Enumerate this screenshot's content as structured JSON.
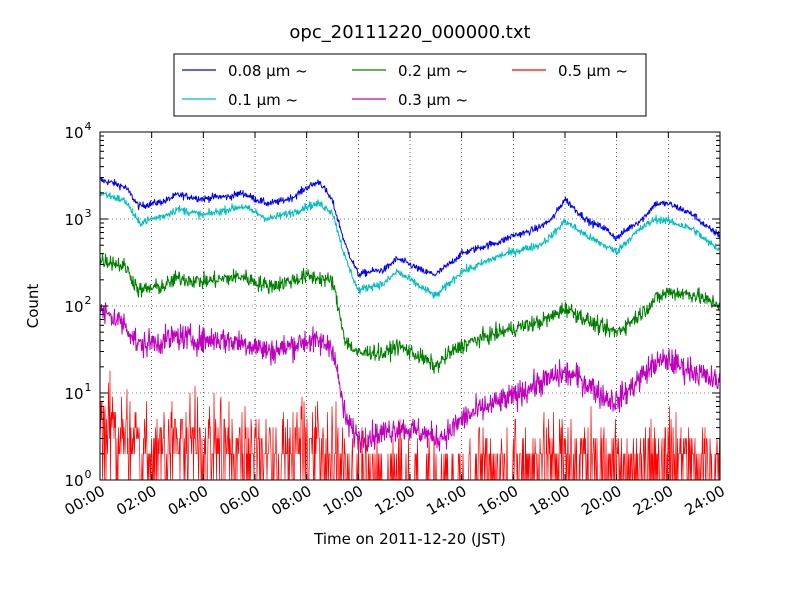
{
  "chart_data": {
    "type": "line",
    "title": "opc_20111220_000000.txt",
    "xlabel": "Time on 2011-12-20 (JST)",
    "ylabel": "Count",
    "y_scale": "log",
    "ylim": [
      1,
      10000
    ],
    "xlim": [
      "00:00",
      "24:00"
    ],
    "grid": true,
    "legend_position": "top-center",
    "x_tick_labels": [
      "00:00",
      "02:00",
      "04:00",
      "06:00",
      "08:00",
      "10:00",
      "12:00",
      "14:00",
      "16:00",
      "18:00",
      "20:00",
      "22:00",
      "24:00"
    ],
    "y_ticks": [
      {
        "base": "10",
        "exp": "0"
      },
      {
        "base": "10",
        "exp": "1"
      },
      {
        "base": "10",
        "exp": "2"
      },
      {
        "base": "10",
        "exp": "3"
      },
      {
        "base": "10",
        "exp": "4"
      }
    ],
    "series": [
      {
        "name": "0.08 μm ~",
        "color": "#0000ff",
        "x": [
          "00:00",
          "00:30",
          "01:00",
          "01:30",
          "02:00",
          "02:30",
          "03:00",
          "03:30",
          "04:00",
          "04:30",
          "05:00",
          "05:30",
          "06:00",
          "06:30",
          "07:00",
          "07:30",
          "08:00",
          "08:30",
          "09:00",
          "09:30",
          "10:00",
          "10:30",
          "11:00",
          "11:30",
          "12:00",
          "12:30",
          "13:00",
          "13:30",
          "14:00",
          "14:30",
          "15:00",
          "15:30",
          "16:00",
          "16:30",
          "17:00",
          "17:30",
          "18:00",
          "18:30",
          "19:00",
          "19:30",
          "20:00",
          "20:30",
          "21:00",
          "21:30",
          "22:00",
          "22:30",
          "23:00",
          "23:30",
          "24:00"
        ],
        "values": [
          2800,
          2600,
          2300,
          1400,
          1500,
          1600,
          1900,
          1800,
          1700,
          1800,
          1800,
          2000,
          1700,
          1500,
          1600,
          1800,
          2300,
          2700,
          1600,
          500,
          230,
          250,
          260,
          350,
          300,
          250,
          230,
          300,
          400,
          450,
          500,
          550,
          650,
          700,
          800,
          1000,
          1700,
          1200,
          900,
          800,
          600,
          800,
          1000,
          1500,
          1500,
          1300,
          1100,
          800,
          650
        ],
        "noise": 0.04
      },
      {
        "name": "0.1 μm ~",
        "color": "#00bfbf",
        "x": [
          "00:00",
          "00:30",
          "01:00",
          "01:30",
          "02:00",
          "02:30",
          "03:00",
          "03:30",
          "04:00",
          "04:30",
          "05:00",
          "05:30",
          "06:00",
          "06:30",
          "07:00",
          "07:30",
          "08:00",
          "08:30",
          "09:00",
          "09:30",
          "10:00",
          "10:30",
          "11:00",
          "11:30",
          "12:00",
          "12:30",
          "13:00",
          "13:30",
          "14:00",
          "14:30",
          "15:00",
          "15:30",
          "16:00",
          "16:30",
          "17:00",
          "17:30",
          "18:00",
          "18:30",
          "19:00",
          "19:30",
          "20:00",
          "20:30",
          "21:00",
          "21:30",
          "22:00",
          "22:30",
          "23:00",
          "23:30",
          "24:00"
        ],
        "values": [
          2000,
          1800,
          1600,
          900,
          1000,
          1100,
          1300,
          1200,
          1100,
          1200,
          1300,
          1400,
          1200,
          1000,
          1100,
          1200,
          1400,
          1500,
          1200,
          350,
          150,
          170,
          180,
          250,
          200,
          160,
          130,
          180,
          250,
          280,
          330,
          380,
          420,
          460,
          500,
          650,
          950,
          750,
          600,
          500,
          420,
          600,
          800,
          1000,
          950,
          850,
          750,
          550,
          450
        ],
        "noise": 0.045
      },
      {
        "name": "0.2 μm ~",
        "color": "#008000",
        "x": [
          "00:00",
          "00:30",
          "01:00",
          "01:30",
          "02:00",
          "02:30",
          "03:00",
          "03:30",
          "04:00",
          "04:30",
          "05:00",
          "05:30",
          "06:00",
          "06:30",
          "07:00",
          "07:30",
          "08:00",
          "08:30",
          "09:00",
          "09:30",
          "10:00",
          "10:30",
          "11:00",
          "11:30",
          "12:00",
          "12:30",
          "13:00",
          "13:30",
          "14:00",
          "14:30",
          "15:00",
          "15:30",
          "16:00",
          "16:30",
          "17:00",
          "17:30",
          "18:00",
          "18:30",
          "19:00",
          "19:30",
          "20:00",
          "20:30",
          "21:00",
          "21:30",
          "22:00",
          "22:30",
          "23:00",
          "23:30",
          "24:00"
        ],
        "values": [
          340,
          320,
          280,
          150,
          160,
          170,
          210,
          200,
          190,
          200,
          210,
          220,
          190,
          170,
          180,
          200,
          220,
          210,
          190,
          40,
          28,
          30,
          28,
          35,
          30,
          25,
          20,
          28,
          35,
          40,
          45,
          50,
          55,
          60,
          65,
          75,
          95,
          80,
          65,
          55,
          50,
          65,
          85,
          120,
          145,
          140,
          135,
          115,
          105
        ],
        "noise": 0.09
      },
      {
        "name": "0.3 μm ~",
        "color": "#bf00bf",
        "x": [
          "00:00",
          "00:30",
          "01:00",
          "01:30",
          "02:00",
          "02:30",
          "03:00",
          "03:30",
          "04:00",
          "04:30",
          "05:00",
          "05:30",
          "06:00",
          "06:30",
          "07:00",
          "07:30",
          "08:00",
          "08:30",
          "09:00",
          "09:30",
          "10:00",
          "10:30",
          "11:00",
          "11:30",
          "12:00",
          "12:30",
          "13:00",
          "13:30",
          "14:00",
          "14:30",
          "15:00",
          "15:30",
          "16:00",
          "16:30",
          "17:00",
          "17:30",
          "18:00",
          "18:30",
          "19:00",
          "19:30",
          "20:00",
          "20:30",
          "21:00",
          "21:30",
          "22:00",
          "22:30",
          "23:00",
          "23:30",
          "24:00"
        ],
        "values": [
          85,
          75,
          60,
          35,
          38,
          40,
          45,
          42,
          40,
          42,
          40,
          38,
          35,
          30,
          32,
          36,
          40,
          38,
          35,
          5,
          3,
          3.2,
          3.5,
          4,
          3.8,
          3.5,
          3,
          3.5,
          5,
          6,
          7,
          8,
          9,
          11,
          13,
          15,
          17,
          15,
          12,
          9,
          8,
          11,
          16,
          22,
          24,
          20,
          18,
          15,
          13
        ],
        "noise": 0.15
      },
      {
        "name": "0.5 μm ~",
        "color": "#ff0000",
        "x": [
          "00:00",
          "00:30",
          "01:00",
          "01:30",
          "02:00",
          "02:30",
          "03:00",
          "03:30",
          "04:00",
          "04:30",
          "05:00",
          "05:30",
          "06:00",
          "06:30",
          "07:00",
          "07:30",
          "08:00",
          "08:30",
          "09:00",
          "09:30",
          "10:00",
          "10:30",
          "11:00",
          "11:30",
          "12:00",
          "12:30",
          "13:00",
          "13:30",
          "14:00",
          "14:30",
          "15:00",
          "15:30",
          "16:00",
          "16:30",
          "17:00",
          "17:30",
          "18:00",
          "18:30",
          "19:00",
          "19:30",
          "20:00",
          "20:30",
          "21:00",
          "21:30",
          "22:00",
          "22:30",
          "23:00",
          "23:30",
          "24:00"
        ],
        "values": [
          5,
          4.5,
          4,
          3,
          3,
          3.2,
          3.5,
          3.3,
          3.2,
          3.3,
          3.2,
          3,
          2.8,
          2.6,
          2.7,
          3,
          3.2,
          3,
          2.8,
          1.3,
          1.1,
          1.1,
          1.1,
          1.2,
          1.15,
          1.1,
          1.1,
          1.15,
          1.3,
          1.4,
          1.5,
          1.6,
          1.7,
          1.8,
          1.9,
          2.1,
          2.3,
          2.1,
          1.9,
          1.7,
          1.6,
          1.8,
          2.1,
          2.5,
          2.6,
          2.4,
          2.2,
          2,
          1.8
        ],
        "noise": 0.35
      }
    ]
  }
}
